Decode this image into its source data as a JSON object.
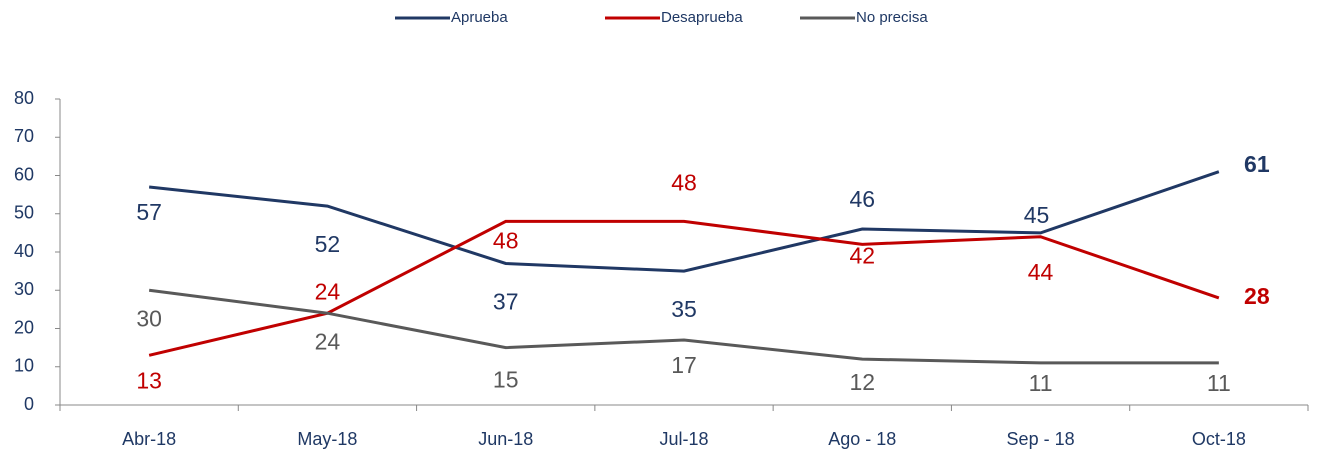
{
  "chart_data": {
    "type": "line",
    "categories": [
      "Abr-18",
      "May-18",
      "Jun-18",
      "Jul-18",
      "Ago - 18",
      "Sep - 18",
      "Oct-18"
    ],
    "series": [
      {
        "name": "Aprueba",
        "color": "#203864",
        "values": [
          57,
          52,
          37,
          35,
          46,
          45,
          61
        ]
      },
      {
        "name": "Desaprueba",
        "color": "#c00000",
        "values": [
          13,
          24,
          48,
          48,
          42,
          44,
          28
        ]
      },
      {
        "name": "No precisa",
        "color": "#595959",
        "values": [
          30,
          24,
          15,
          17,
          12,
          11,
          11
        ]
      }
    ],
    "ylim": [
      0,
      80
    ],
    "yticks": [
      0,
      10,
      20,
      30,
      40,
      50,
      60,
      70,
      80
    ],
    "legend": "top"
  }
}
